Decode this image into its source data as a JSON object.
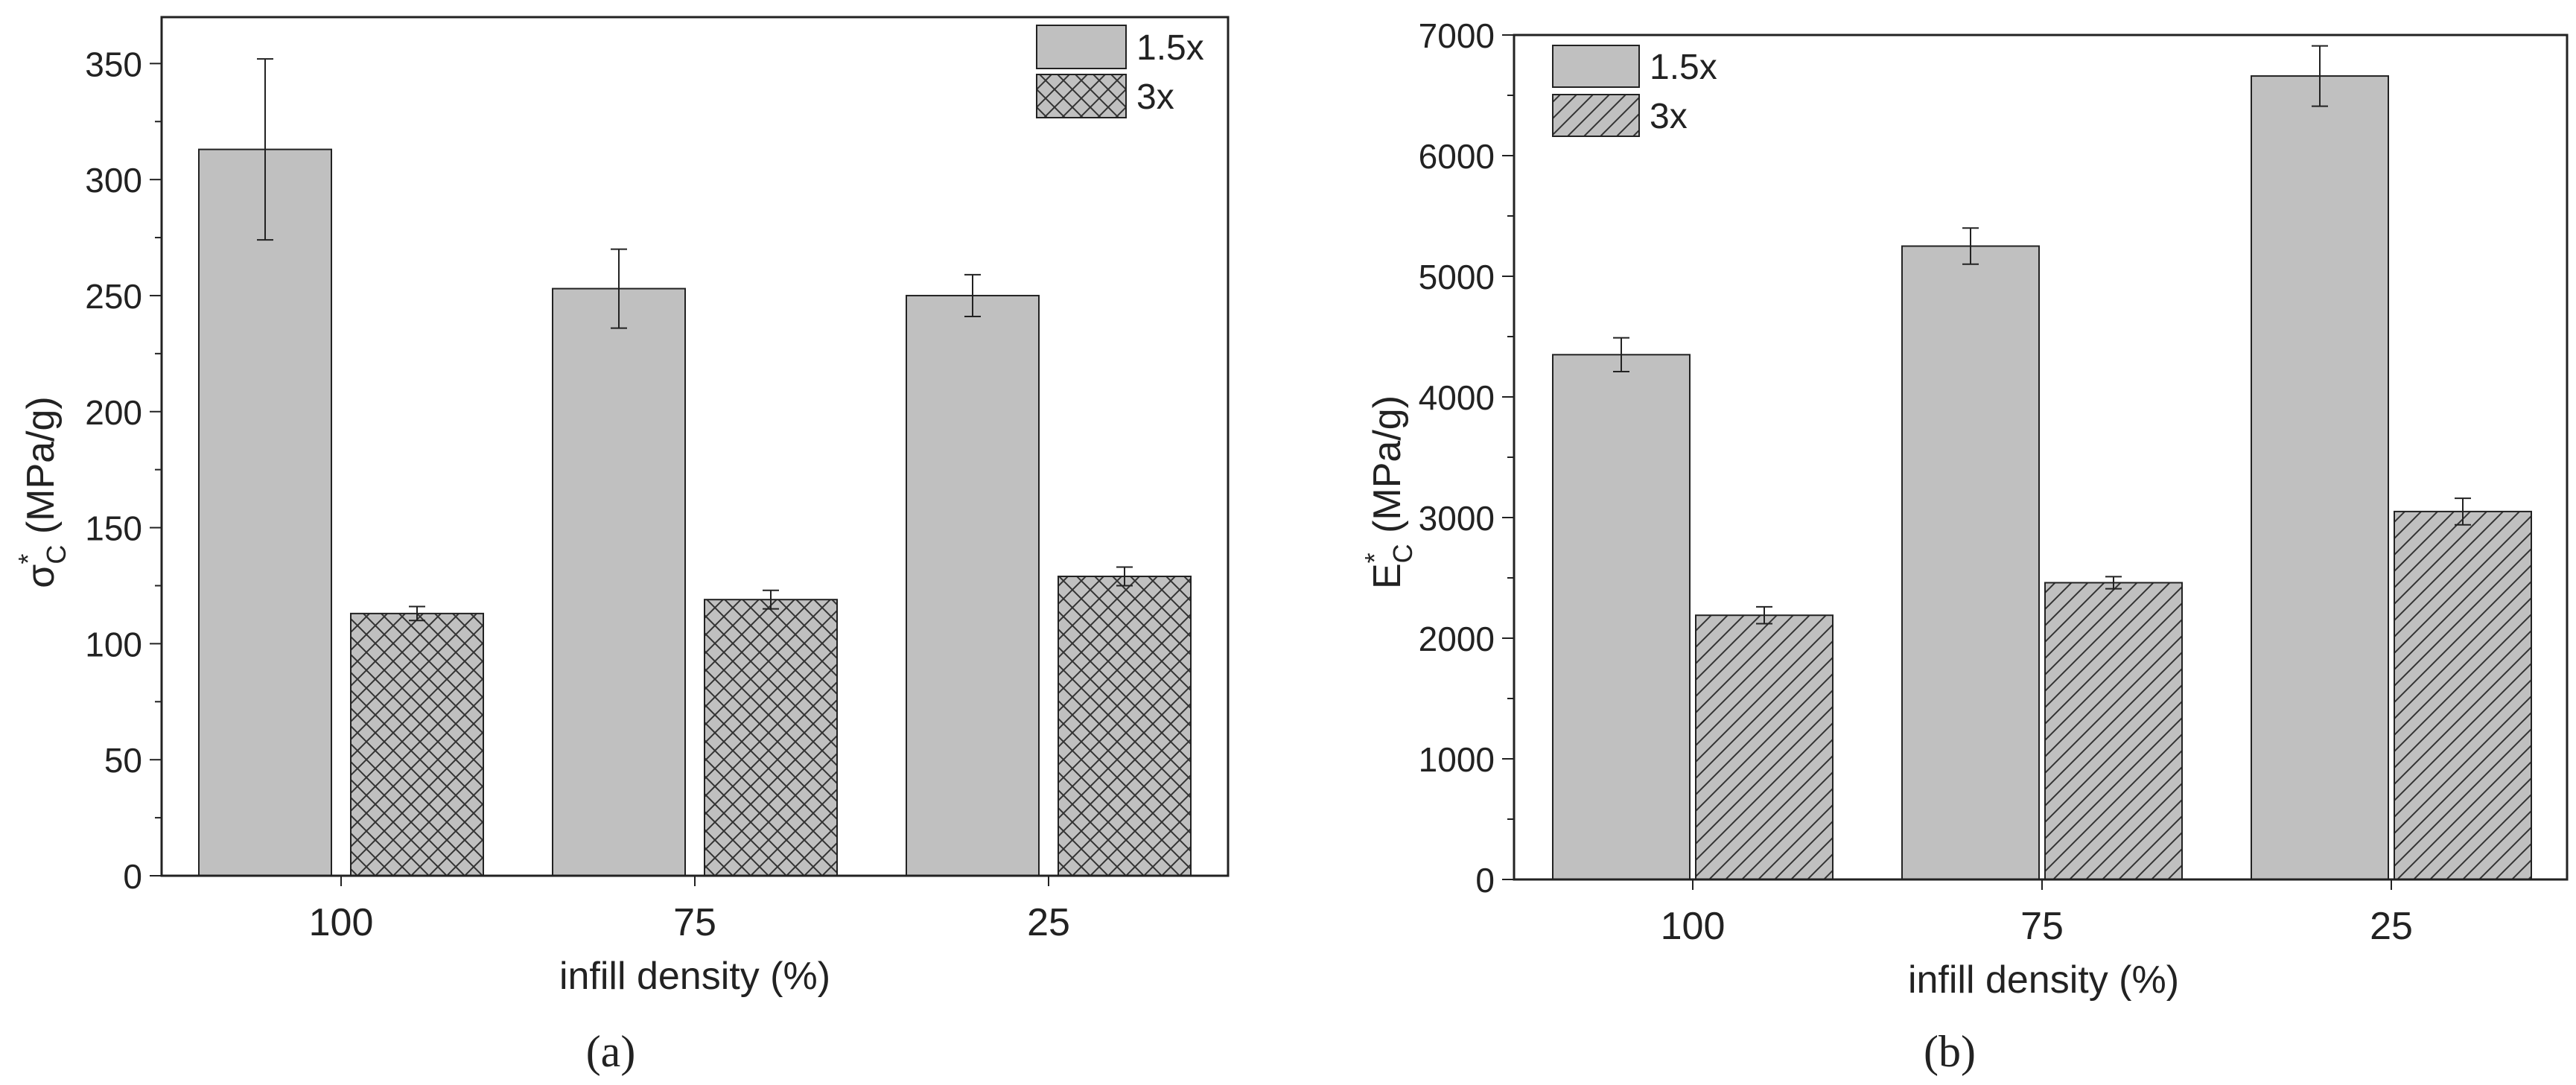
{
  "chart_data": [
    {
      "type": "bar",
      "panel_label": "(a)",
      "xlabel": "infill density (%)",
      "ylabel_main": "σ",
      "ylabel_sup": "*",
      "ylabel_sub": "C",
      "ylabel_unit": " (MPa/g)",
      "categories": [
        "100",
        "75",
        "25"
      ],
      "ylim": [
        0,
        370
      ],
      "yticks": [
        0,
        50,
        100,
        150,
        200,
        250,
        300,
        350
      ],
      "legend_position": "top-right",
      "grid": false,
      "series": [
        {
          "name": "1.5x",
          "pattern": "solid",
          "values": [
            313,
            253,
            250
          ],
          "errors": [
            39,
            17,
            9
          ]
        },
        {
          "name": "3x",
          "pattern": "crosshatch",
          "values": [
            113,
            119,
            129
          ],
          "errors": [
            3,
            4,
            4
          ]
        }
      ]
    },
    {
      "type": "bar",
      "panel_label": "(b)",
      "xlabel": "infill density (%)",
      "ylabel_main": "E",
      "ylabel_sup": "*",
      "ylabel_sub": "C",
      "ylabel_unit": " (MPa/g)",
      "categories": [
        "100",
        "75",
        "25"
      ],
      "ylim": [
        0,
        7000
      ],
      "yticks": [
        0,
        1000,
        2000,
        3000,
        4000,
        5000,
        6000,
        7000
      ],
      "legend_position": "top-left",
      "grid": false,
      "series": [
        {
          "name": "1.5x",
          "pattern": "solid",
          "values": [
            4350,
            5250,
            6660
          ],
          "errors": [
            140,
            150,
            250
          ]
        },
        {
          "name": "3x",
          "pattern": "diagonal",
          "values": [
            2190,
            2460,
            3050
          ],
          "errors": [
            70,
            50,
            110
          ]
        }
      ]
    }
  ],
  "colors": {
    "bar_fill": "#c0c0c0",
    "axis": "#222222",
    "hatch": "#333333"
  }
}
